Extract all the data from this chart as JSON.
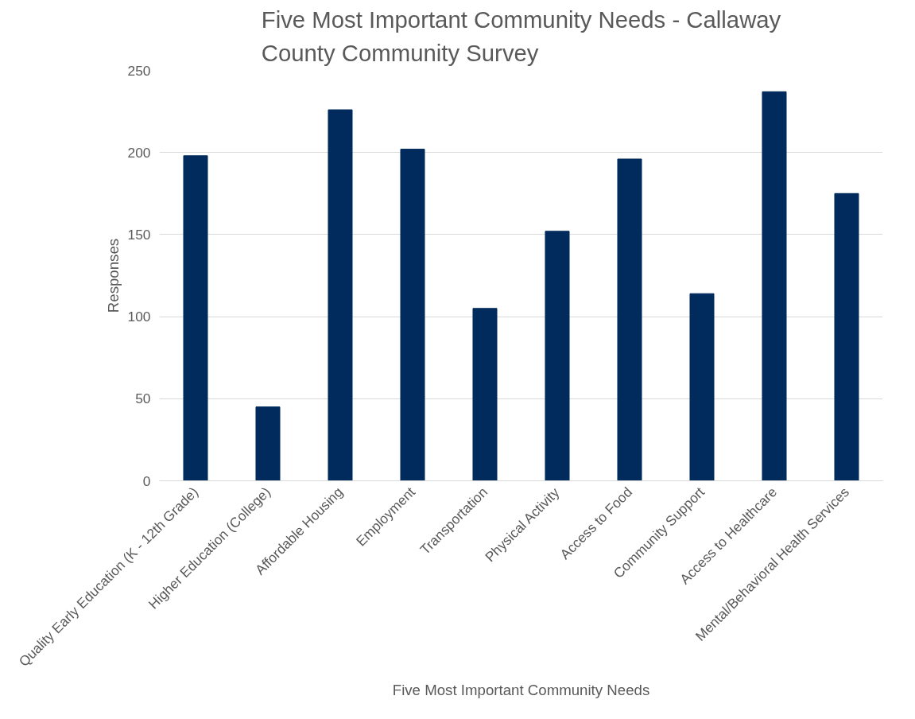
{
  "chart_data": {
    "type": "bar",
    "title": "Five Most Important Community Needs - Callaway County Community Survey",
    "xlabel": "Five Most Important Community Needs",
    "ylabel": "Responses",
    "categories": [
      "Quality Early Education (K - 12th Grade)",
      "Higher Education (College)",
      "Affordable Housing",
      "Employment",
      "Transportation",
      "Physical Activity",
      "Access to Food",
      "Community Support",
      "Access to Healthcare",
      "Mental/Behavioral Health Services"
    ],
    "values": [
      198,
      45,
      226,
      202,
      105,
      152,
      196,
      114,
      237,
      175
    ],
    "color": "#002b5c",
    "ylim": [
      0,
      250
    ],
    "yticks": [
      0,
      50,
      100,
      150,
      200,
      250
    ],
    "grid": "y"
  }
}
